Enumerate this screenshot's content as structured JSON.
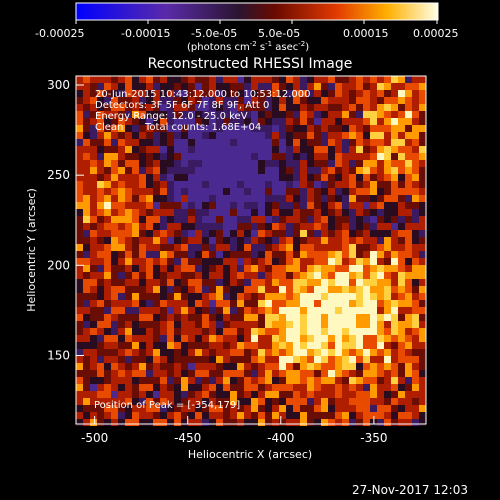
{
  "colorbar": {
    "tick_labels": [
      "-0.00025",
      "-0.00015",
      "-5.0e-05",
      "5.0e-05",
      "0.00015",
      "0.00025"
    ],
    "unit_label": "(photons cm",
    "unit_sup1": "-2",
    "unit_mid": " s",
    "unit_sup2": "-1",
    "unit_end": " asec",
    "unit_sup3": "-2",
    "unit_close": ")"
  },
  "title": "Reconstructed RHESSI Image",
  "info": {
    "line1": "20-Jun-2015 10:43:12.000 to 10:53:12.000",
    "line2": "Detectors: 3F 5F 6F 7F 8F 9F, Att 0",
    "line3": "Energy Range: 12.0 - 25.0 keV",
    "line4a": "Clean",
    "line4b": "Total counts: 1.68E+04"
  },
  "peak_label": "Position of Peak = [-354,179]",
  "axes": {
    "xlabel": "Heliocentric X (arcsec)",
    "ylabel": "Heliocentric Y (arcsec)",
    "xticks": [
      -500,
      -450,
      -400,
      -350
    ],
    "yticks": [
      150,
      200,
      250,
      300
    ],
    "xlim": [
      -510,
      -322
    ],
    "ylim": [
      112,
      305
    ]
  },
  "timestamp": "27-Nov-2017 12:03",
  "colors": {
    "background": "#000000",
    "text": "#ffffff"
  }
}
